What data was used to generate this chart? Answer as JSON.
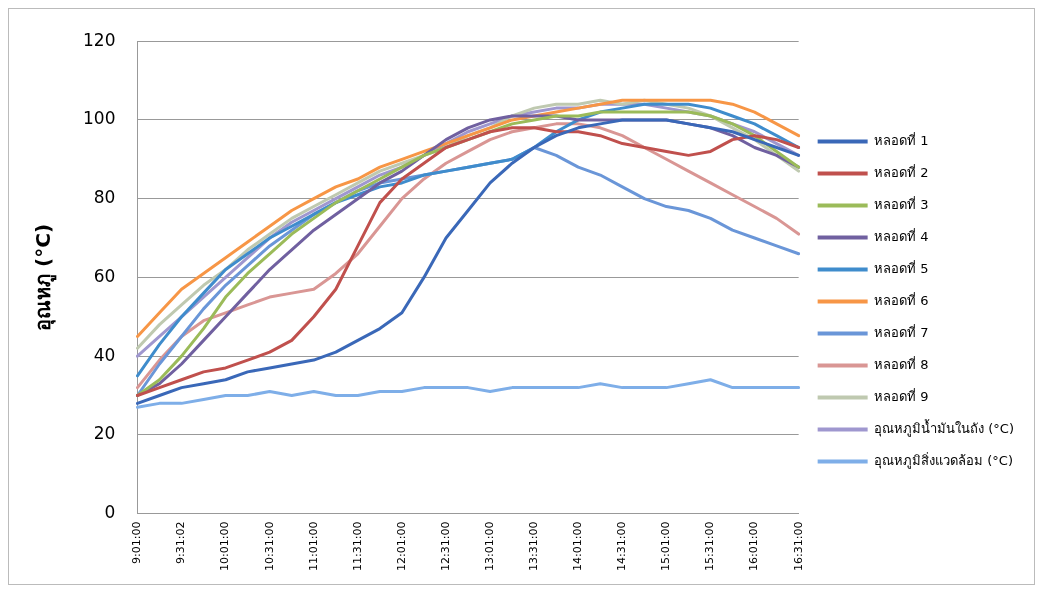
{
  "chart_data": {
    "type": "line",
    "ylabel": "อุณหภู (°C)",
    "categories": [
      "9:01:00",
      null,
      "9:31:02",
      null,
      "10:01:00",
      null,
      "10:31:00",
      null,
      "11:01:00",
      null,
      "11:31:00",
      null,
      "12:01:00",
      null,
      "12:31:00",
      null,
      "13:01:00",
      null,
      "13:31:00",
      null,
      "14:01:00",
      null,
      "14:31:00",
      null,
      "15:01:00",
      null,
      "15:31:00",
      null,
      "16:01:00",
      null,
      "16:31:00"
    ],
    "ylim": [
      0,
      120
    ],
    "yticks": [
      0,
      20,
      40,
      60,
      80,
      100,
      120
    ],
    "grid": "y",
    "legend": "right",
    "marker": "none",
    "line_style": "solid",
    "series": [
      {
        "name": "หลอดที่ 1",
        "color": "#3a68b8",
        "values": [
          28,
          30,
          32,
          33,
          34,
          36,
          37,
          38,
          39,
          41,
          44,
          47,
          51,
          60,
          70,
          77,
          84,
          89,
          93,
          96,
          98,
          99,
          100,
          100,
          100,
          99,
          98,
          97,
          95,
          93,
          91
        ]
      },
      {
        "name": "หลอดที่ 2",
        "color": "#c0504d",
        "values": [
          30,
          32,
          34,
          36,
          37,
          39,
          41,
          44,
          50,
          57,
          68,
          79,
          85,
          89,
          93,
          95,
          97,
          98,
          98,
          97,
          97,
          96,
          94,
          93,
          92,
          91,
          92,
          95,
          96,
          95,
          93
        ]
      },
      {
        "name": "หลอดที่ 3",
        "color": "#9bbb59",
        "values": [
          30,
          34,
          40,
          47,
          55,
          61,
          66,
          71,
          75,
          79,
          82,
          85,
          88,
          91,
          93,
          95,
          97,
          99,
          100,
          101,
          101,
          102,
          102,
          102,
          102,
          102,
          101,
          99,
          96,
          92,
          88
        ]
      },
      {
        "name": "หลอดที่ 4",
        "color": "#7060a0",
        "values": [
          30,
          33,
          38,
          44,
          50,
          56,
          62,
          67,
          72,
          76,
          80,
          84,
          87,
          91,
          95,
          98,
          100,
          101,
          101,
          101,
          100,
          100,
          100,
          100,
          100,
          99,
          98,
          96,
          93,
          91,
          88
        ]
      },
      {
        "name": "หลอดที่ 5",
        "color": "#3f8ccc",
        "values": [
          35,
          43,
          50,
          56,
          62,
          66,
          70,
          73,
          76,
          79,
          81,
          83,
          84,
          86,
          87,
          88,
          89,
          90,
          93,
          97,
          100,
          102,
          103,
          104,
          104,
          104,
          103,
          101,
          99,
          96,
          93
        ]
      },
      {
        "name": "หลอดที่ 6",
        "color": "#f79646",
        "values": [
          45,
          51,
          57,
          61,
          65,
          69,
          73,
          77,
          80,
          83,
          85,
          88,
          90,
          92,
          94,
          96,
          98,
          100,
          101,
          102,
          103,
          104,
          105,
          105,
          105,
          105,
          105,
          104,
          102,
          99,
          96
        ]
      },
      {
        "name": "หลอดที่ 7",
        "color": "#6a96d8",
        "values": [
          30,
          38,
          45,
          52,
          58,
          63,
          68,
          72,
          76,
          79,
          82,
          84,
          85,
          86,
          87,
          88,
          89,
          90,
          93,
          91,
          88,
          86,
          83,
          80,
          78,
          77,
          75,
          72,
          70,
          68,
          66
        ]
      },
      {
        "name": "หลอดที่ 8",
        "color": "#d99694",
        "values": [
          32,
          39,
          45,
          49,
          51,
          53,
          55,
          56,
          57,
          61,
          66,
          73,
          80,
          85,
          89,
          92,
          95,
          97,
          98,
          99,
          99,
          98,
          96,
          93,
          90,
          87,
          84,
          81,
          78,
          75,
          71
        ]
      },
      {
        "name": "หลอดที่ 9",
        "color": "#bfc9b0",
        "values": [
          42,
          48,
          53,
          58,
          62,
          67,
          71,
          75,
          78,
          81,
          84,
          87,
          89,
          91,
          93,
          96,
          98,
          101,
          103,
          104,
          104,
          105,
          104,
          105,
          104,
          103,
          101,
          98,
          95,
          91,
          87
        ]
      },
      {
        "name": "อุณหภูมิน้ำมันในถัง (°C)",
        "color": "#9f97cf",
        "values": [
          40,
          45,
          50,
          55,
          60,
          65,
          70,
          74,
          77,
          80,
          83,
          86,
          88,
          91,
          94,
          97,
          99,
          101,
          102,
          103,
          103,
          104,
          104,
          104,
          103,
          102,
          101,
          99,
          97,
          94,
          91
        ]
      },
      {
        "name": "อุณหภูมิสิ่งแวดล้อม (°C)",
        "color": "#7eaee8",
        "values": [
          27,
          28,
          28,
          29,
          30,
          30,
          31,
          30,
          31,
          30,
          30,
          31,
          31,
          32,
          32,
          32,
          31,
          32,
          32,
          32,
          32,
          33,
          32,
          32,
          32,
          33,
          34,
          32,
          32,
          32,
          32
        ]
      }
    ]
  }
}
